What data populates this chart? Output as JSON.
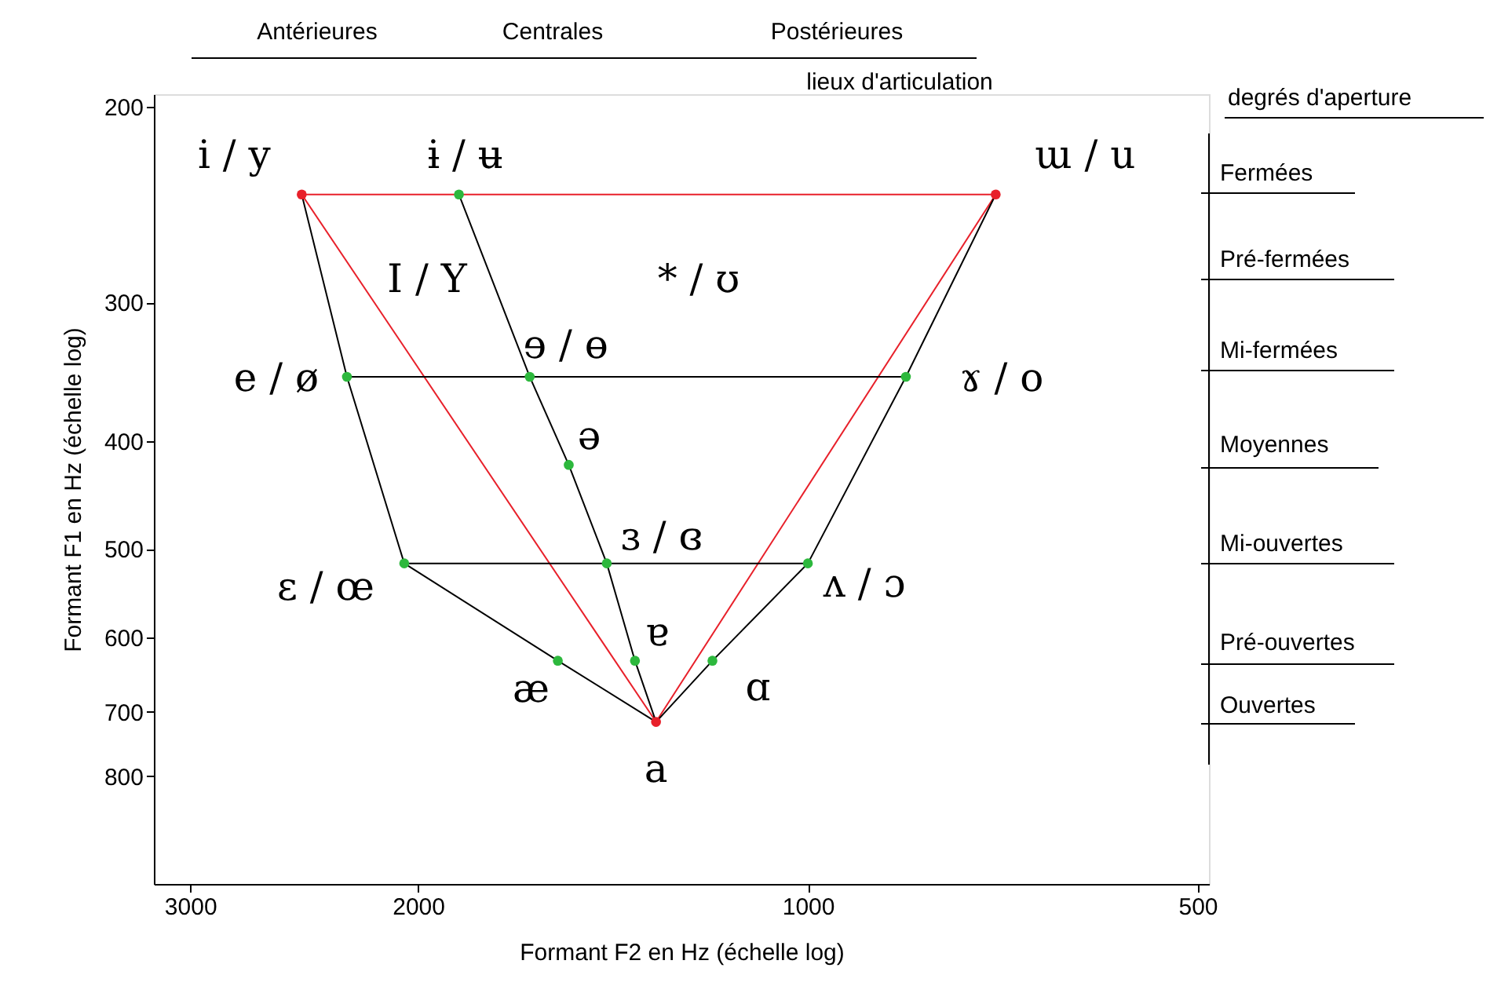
{
  "chart_data": {
    "type": "scatter",
    "xlabel": "Formant F2 en Hz (échelle log)",
    "ylabel": "Formant F1 en Hz (échelle log)",
    "log": "xy",
    "xlim": [
      3200,
      490
    ],
    "ylim": [
      1000,
      195
    ],
    "xticks": [
      3000,
      2000,
      1000,
      500
    ],
    "yticks": [
      200,
      300,
      400,
      500,
      600,
      700,
      800
    ],
    "grid": false,
    "series": [
      {
        "type": "line",
        "color": "#e8202a",
        "x": [
          2460,
          716
        ],
        "values": [
          240,
          240
        ]
      },
      {
        "type": "line",
        "color": "#e8202a",
        "x": [
          2460,
          1310
        ],
        "values": [
          240,
          715
        ]
      },
      {
        "type": "line",
        "color": "#e8202a",
        "x": [
          716,
          1310
        ],
        "values": [
          240,
          715
        ]
      },
      {
        "type": "line",
        "color": "#000000",
        "x": [
          2460,
          2270,
          2050,
          1560,
          1310
        ],
        "values": [
          240,
          350,
          515,
          630,
          715
        ]
      },
      {
        "type": "line",
        "color": "#000000",
        "x": [
          1860,
          1640,
          1530,
          1430,
          1360,
          1310
        ],
        "values": [
          240,
          350,
          420,
          515,
          630,
          715
        ]
      },
      {
        "type": "line",
        "color": "#000000",
        "x": [
          716,
          840,
          1000,
          1185,
          1310
        ],
        "values": [
          240,
          350,
          515,
          630,
          715
        ]
      },
      {
        "type": "line",
        "color": "#000000",
        "x": [
          2270,
          1640,
          840
        ],
        "values": [
          350,
          350,
          350
        ]
      },
      {
        "type": "line",
        "color": "#000000",
        "x": [
          2050,
          1430,
          1000
        ],
        "values": [
          515,
          515,
          515
        ]
      },
      {
        "marker": "circle",
        "x": [
          2460,
          1860,
          716,
          2270,
          1640,
          840,
          1530,
          2050,
          1430,
          1000,
          1560,
          1360,
          1185,
          1310
        ],
        "values": [
          240,
          240,
          240,
          350,
          350,
          350,
          420,
          515,
          515,
          515,
          630,
          630,
          630,
          715
        ],
        "colors": [
          "#e8202a",
          "#2db83d",
          "#e8202a",
          "#2db83d",
          "#2db83d",
          "#2db83d",
          "#2db83d",
          "#2db83d",
          "#2db83d",
          "#2db83d",
          "#2db83d",
          "#2db83d",
          "#2db83d",
          "#e8202a"
        ],
        "value_labels": [
          "i / y",
          "ɨ / ʉ",
          "ɯ / u",
          "e / ø",
          "ɘ / ɵ",
          "ɤ / o",
          "ə",
          "ɛ / œ",
          "ɜ / ɞ",
          "ʌ / ɔ",
          "æ",
          "ɐ",
          "ɑ",
          "a"
        ]
      }
    ],
    "annotations": [
      "I / Y",
      "* / ʊ",
      "Antérieures",
      "Centrales",
      "Postérieures",
      "lieux d'articulation",
      "degrés d'aperture",
      "Fermées",
      "Pré-fermées",
      "Mi-fermées",
      "Moyennes",
      "Mi-ouvertes",
      "Pré-ouvertes",
      "Ouvertes"
    ]
  }
}
